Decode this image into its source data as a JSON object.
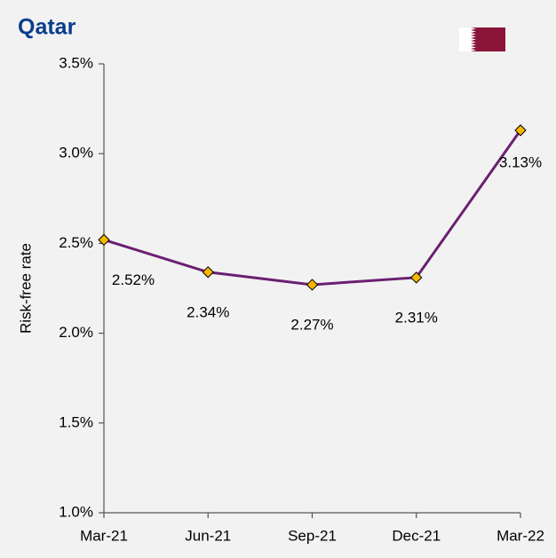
{
  "chart_data": {
    "type": "line",
    "title": "Qatar",
    "y_label": "Risk-free rate",
    "categories": [
      "Mar-21",
      "Jun-21",
      "Sep-21",
      "Dec-21",
      "Mar-22"
    ],
    "series": [
      {
        "name": "Risk-free rate",
        "color": "#6b1f72",
        "marker_color": "#f5b800",
        "values": [
          2.52,
          2.34,
          2.27,
          2.31,
          3.13
        ],
        "value_labels": [
          "2.52%",
          "2.34%",
          "2.27%",
          "2.31%",
          "3.13%"
        ]
      }
    ],
    "ylim": [
      1.0,
      3.5
    ],
    "yticks": [
      {
        "value": 1.0,
        "label": "1.0%"
      },
      {
        "value": 1.5,
        "label": "1.5%"
      },
      {
        "value": 2.0,
        "label": "2.0%"
      },
      {
        "value": 2.5,
        "label": "2.5%"
      },
      {
        "value": 3.0,
        "label": "3.0%"
      },
      {
        "value": 3.5,
        "label": "3.5%"
      }
    ]
  }
}
